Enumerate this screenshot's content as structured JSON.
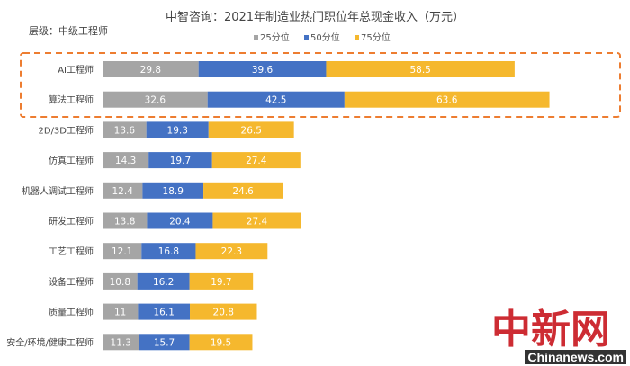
{
  "chart_data": {
    "type": "bar",
    "orientation": "horizontal",
    "stacked": true,
    "title": "中智咨询：2021年制造业热门职位年总现金收入（万元）",
    "subtitle": "层级：中级工程师",
    "legend_position": "top",
    "grid": false,
    "categories": [
      "AI工程师",
      "算法工程师",
      "2D/3D工程师",
      "仿真工程师",
      "机器人调试工程师",
      "研发工程师",
      "工艺工程师",
      "设备工程师",
      "质量工程师",
      "安全/环境/健康工程师"
    ],
    "highlighted_categories": [
      "AI工程师",
      "算法工程师"
    ],
    "series": [
      {
        "name": "25分位",
        "color": "#a5a5a5",
        "values": [
          29.8,
          32.6,
          13.6,
          14.3,
          12.4,
          13.8,
          12.1,
          10.8,
          11,
          11.3
        ]
      },
      {
        "name": "50分位",
        "color": "#4472c4",
        "values": [
          39.6,
          42.5,
          19.3,
          19.7,
          18.9,
          20.4,
          16.8,
          16.2,
          16.1,
          15.7
        ]
      },
      {
        "name": "75分位",
        "color": "#f4b183",
        "values": [
          58.5,
          63.6,
          26.5,
          27.4,
          24.6,
          27.4,
          22.3,
          19.7,
          20.8,
          19.5
        ]
      }
    ],
    "highlight_color": "#ed7d31"
  },
  "watermark": {
    "logo": "中新网",
    "site": "Chinanews.com"
  }
}
